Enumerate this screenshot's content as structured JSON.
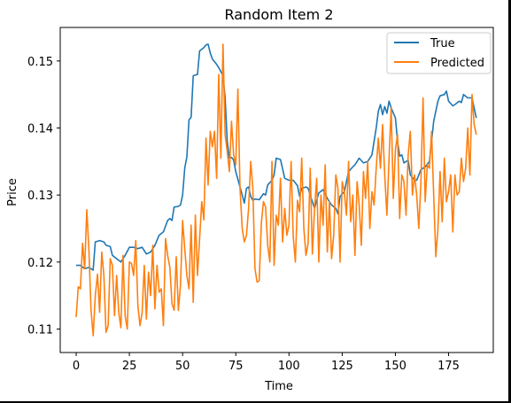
{
  "chart_data": {
    "type": "line",
    "title": "Random Item 2",
    "xlabel": "Time",
    "ylabel": "Price",
    "xlim": [
      -7.5,
      196
    ],
    "ylim": [
      0.1065,
      0.155
    ],
    "xticks": [
      0,
      25,
      50,
      75,
      100,
      125,
      150,
      175
    ],
    "yticks": [
      0.11,
      0.12,
      0.13,
      0.14,
      0.15
    ],
    "ytick_labels": [
      "0.11",
      "0.12",
      "0.13",
      "0.14",
      "0.15"
    ],
    "grid": false,
    "legend_position": "top-right",
    "series": [
      {
        "name": "True",
        "color": "#1f77b4",
        "points": [
          [
            0,
            0.1195
          ],
          [
            2,
            0.1195
          ],
          [
            4,
            0.119
          ],
          [
            6,
            0.1192
          ],
          [
            8,
            0.1188
          ],
          [
            9,
            0.123
          ],
          [
            11,
            0.1232
          ],
          [
            13,
            0.123
          ],
          [
            14,
            0.1225
          ],
          [
            16,
            0.1223
          ],
          [
            17,
            0.121
          ],
          [
            19,
            0.1205
          ],
          [
            21,
            0.12
          ],
          [
            23,
            0.121
          ],
          [
            25,
            0.1222
          ],
          [
            27,
            0.1222
          ],
          [
            29,
            0.122
          ],
          [
            31,
            0.1222
          ],
          [
            33,
            0.1212
          ],
          [
            35,
            0.1215
          ],
          [
            37,
            0.1225
          ],
          [
            39,
            0.124
          ],
          [
            41,
            0.1245
          ],
          [
            43,
            0.1262
          ],
          [
            44,
            0.1265
          ],
          [
            45,
            0.1262
          ],
          [
            46,
            0.1282
          ],
          [
            48,
            0.1283
          ],
          [
            49,
            0.1285
          ],
          [
            50,
            0.13
          ],
          [
            51,
            0.134
          ],
          [
            52,
            0.1357
          ],
          [
            53,
            0.1412
          ],
          [
            54,
            0.1416
          ],
          [
            55,
            0.1478
          ],
          [
            57,
            0.148
          ],
          [
            58,
            0.1515
          ],
          [
            60,
            0.152
          ],
          [
            61,
            0.1524
          ],
          [
            62,
            0.1525
          ],
          [
            63,
            0.1512
          ],
          [
            64,
            0.1503
          ],
          [
            66,
            0.1495
          ],
          [
            67,
            0.149
          ],
          [
            69,
            0.1478
          ],
          [
            70,
            0.1445
          ],
          [
            71,
            0.138
          ],
          [
            72,
            0.1355
          ],
          [
            73,
            0.1356
          ],
          [
            74,
            0.1352
          ],
          [
            75,
            0.1335
          ],
          [
            77,
            0.1312
          ],
          [
            78,
            0.13
          ],
          [
            79,
            0.1288
          ],
          [
            80,
            0.131
          ],
          [
            81,
            0.1312
          ],
          [
            82,
            0.1298
          ],
          [
            83,
            0.1292
          ],
          [
            84,
            0.1294
          ],
          [
            86,
            0.1293
          ],
          [
            88,
            0.1302
          ],
          [
            89,
            0.13
          ],
          [
            90,
            0.1315
          ],
          [
            92,
            0.1322
          ],
          [
            93,
            0.133
          ],
          [
            94,
            0.1355
          ],
          [
            96,
            0.1353
          ],
          [
            98,
            0.1325
          ],
          [
            100,
            0.1322
          ],
          [
            102,
            0.1322
          ],
          [
            104,
            0.1314
          ],
          [
            105,
            0.1298
          ],
          [
            106,
            0.131
          ],
          [
            108,
            0.1312
          ],
          [
            109,
            0.131
          ],
          [
            111,
            0.129
          ],
          [
            112,
            0.128
          ],
          [
            113,
            0.1292
          ],
          [
            114,
            0.1303
          ],
          [
            116,
            0.1308
          ],
          [
            118,
            0.1295
          ],
          [
            120,
            0.1285
          ],
          [
            122,
            0.128
          ],
          [
            123,
            0.1272
          ],
          [
            124,
            0.1298
          ],
          [
            126,
            0.1305
          ],
          [
            127,
            0.132
          ],
          [
            128,
            0.1335
          ],
          [
            130,
            0.1342
          ],
          [
            131,
            0.1345
          ],
          [
            133,
            0.1355
          ],
          [
            135,
            0.1348
          ],
          [
            137,
            0.135
          ],
          [
            139,
            0.136
          ],
          [
            141,
            0.14
          ],
          [
            142,
            0.1425
          ],
          [
            143,
            0.1435
          ],
          [
            144,
            0.142
          ],
          [
            145,
            0.1432
          ],
          [
            146,
            0.1422
          ],
          [
            147,
            0.144
          ],
          [
            148,
            0.143
          ],
          [
            150,
            0.1415
          ],
          [
            151,
            0.138
          ],
          [
            152,
            0.1358
          ],
          [
            153,
            0.136
          ],
          [
            154,
            0.1348
          ],
          [
            156,
            0.1352
          ],
          [
            157,
            0.133
          ],
          [
            159,
            0.1322
          ],
          [
            160,
            0.1322
          ],
          [
            162,
            0.1338
          ],
          [
            164,
            0.1342
          ],
          [
            166,
            0.135
          ],
          [
            168,
            0.141
          ],
          [
            170,
            0.144
          ],
          [
            171,
            0.1448
          ],
          [
            173,
            0.145
          ],
          [
            174,
            0.1455
          ],
          [
            175,
            0.144
          ],
          [
            177,
            0.1433
          ],
          [
            178,
            0.1435
          ],
          [
            180,
            0.144
          ],
          [
            181,
            0.1438
          ],
          [
            182,
            0.145
          ],
          [
            184,
            0.1445
          ],
          [
            186,
            0.1445
          ],
          [
            188,
            0.1415
          ]
        ]
      },
      {
        "name": "Predicted",
        "color": "#ff7f0e",
        "points": [
          [
            0,
            0.1118
          ],
          [
            1,
            0.1163
          ],
          [
            2,
            0.116
          ],
          [
            3,
            0.1228
          ],
          [
            4,
            0.119
          ],
          [
            5,
            0.1278
          ],
          [
            6,
            0.1218
          ],
          [
            7,
            0.1128
          ],
          [
            8,
            0.109
          ],
          [
            9,
            0.115
          ],
          [
            10,
            0.1182
          ],
          [
            11,
            0.1125
          ],
          [
            12,
            0.1215
          ],
          [
            13,
            0.118
          ],
          [
            14,
            0.1095
          ],
          [
            15,
            0.1105
          ],
          [
            16,
            0.1205
          ],
          [
            17,
            0.1195
          ],
          [
            18,
            0.112
          ],
          [
            19,
            0.118
          ],
          [
            20,
            0.1125
          ],
          [
            21,
            0.1102
          ],
          [
            22,
            0.121
          ],
          [
            23,
            0.112
          ],
          [
            24,
            0.11
          ],
          [
            25,
            0.12
          ],
          [
            26,
            0.1198
          ],
          [
            27,
            0.118
          ],
          [
            28,
            0.1232
          ],
          [
            29,
            0.1135
          ],
          [
            30,
            0.1105
          ],
          [
            31,
            0.1125
          ],
          [
            32,
            0.1195
          ],
          [
            33,
            0.1115
          ],
          [
            34,
            0.1185
          ],
          [
            35,
            0.115
          ],
          [
            36,
            0.1225
          ],
          [
            37,
            0.113
          ],
          [
            38,
            0.1195
          ],
          [
            39,
            0.1155
          ],
          [
            40,
            0.116
          ],
          [
            41,
            0.1105
          ],
          [
            42,
            0.1235
          ],
          [
            43,
            0.121
          ],
          [
            44,
            0.1192
          ],
          [
            45,
            0.1138
          ],
          [
            46,
            0.1128
          ],
          [
            47,
            0.1208
          ],
          [
            48,
            0.1128
          ],
          [
            49,
            0.1165
          ],
          [
            50,
            0.1262
          ],
          [
            51,
            0.122
          ],
          [
            52,
            0.118
          ],
          [
            53,
            0.116
          ],
          [
            54,
            0.1255
          ],
          [
            55,
            0.114
          ],
          [
            56,
            0.127
          ],
          [
            57,
            0.118
          ],
          [
            58,
            0.1235
          ],
          [
            59,
            0.129
          ],
          [
            60,
            0.1263
          ],
          [
            61,
            0.1385
          ],
          [
            62,
            0.1315
          ],
          [
            63,
            0.1395
          ],
          [
            64,
            0.1372
          ],
          [
            65,
            0.1395
          ],
          [
            66,
            0.1325
          ],
          [
            67,
            0.148
          ],
          [
            68,
            0.1355
          ],
          [
            69,
            0.1525
          ],
          [
            70,
            0.139
          ],
          [
            71,
            0.1365
          ],
          [
            72,
            0.1335
          ],
          [
            73,
            0.141
          ],
          [
            74,
            0.136
          ],
          [
            75,
            0.1345
          ],
          [
            76,
            0.1458
          ],
          [
            77,
            0.131
          ],
          [
            78,
            0.125
          ],
          [
            79,
            0.123
          ],
          [
            80,
            0.124
          ],
          [
            81,
            0.128
          ],
          [
            82,
            0.135
          ],
          [
            83,
            0.131
          ],
          [
            84,
            0.119
          ],
          [
            85,
            0.117
          ],
          [
            86,
            0.1172
          ],
          [
            87,
            0.1258
          ],
          [
            88,
            0.129
          ],
          [
            89,
            0.1282
          ],
          [
            90,
            0.1225
          ],
          [
            91,
            0.12
          ],
          [
            92,
            0.135
          ],
          [
            93,
            0.1195
          ],
          [
            94,
            0.127
          ],
          [
            95,
            0.1255
          ],
          [
            96,
            0.1325
          ],
          [
            97,
            0.123
          ],
          [
            98,
            0.128
          ],
          [
            99,
            0.124
          ],
          [
            100,
            0.1255
          ],
          [
            101,
            0.135
          ],
          [
            102,
            0.1238
          ],
          [
            103,
            0.12
          ],
          [
            104,
            0.1292
          ],
          [
            105,
            0.1275
          ],
          [
            106,
            0.1355
          ],
          [
            107,
            0.125
          ],
          [
            108,
            0.121
          ],
          [
            109,
            0.1228
          ],
          [
            110,
            0.134
          ],
          [
            111,
            0.1212
          ],
          [
            112,
            0.128
          ],
          [
            113,
            0.1325
          ],
          [
            114,
            0.12
          ],
          [
            115,
            0.13
          ],
          [
            116,
            0.1255
          ],
          [
            117,
            0.1345
          ],
          [
            118,
            0.1215
          ],
          [
            119,
            0.129
          ],
          [
            120,
            0.1205
          ],
          [
            121,
            0.124
          ],
          [
            122,
            0.133
          ],
          [
            123,
            0.131
          ],
          [
            124,
            0.12
          ],
          [
            125,
            0.132
          ],
          [
            126,
            0.1305
          ],
          [
            127,
            0.127
          ],
          [
            128,
            0.135
          ],
          [
            129,
            0.126
          ],
          [
            130,
            0.13
          ],
          [
            131,
            0.121
          ],
          [
            132,
            0.132
          ],
          [
            133,
            0.1285
          ],
          [
            134,
            0.1225
          ],
          [
            135,
            0.1335
          ],
          [
            136,
            0.1295
          ],
          [
            137,
            0.135
          ],
          [
            138,
            0.125
          ],
          [
            139,
            0.1305
          ],
          [
            140,
            0.1285
          ],
          [
            141,
            0.134
          ],
          [
            142,
            0.1385
          ],
          [
            143,
            0.134
          ],
          [
            144,
            0.1405
          ],
          [
            145,
            0.133
          ],
          [
            146,
            0.127
          ],
          [
            147,
            0.1355
          ],
          [
            148,
            0.143
          ],
          [
            149,
            0.1295
          ],
          [
            150,
            0.1368
          ],
          [
            151,
            0.139
          ],
          [
            152,
            0.1265
          ],
          [
            153,
            0.133
          ],
          [
            154,
            0.132
          ],
          [
            155,
            0.127
          ],
          [
            156,
            0.136
          ],
          [
            157,
            0.1395
          ],
          [
            158,
            0.13
          ],
          [
            159,
            0.133
          ],
          [
            160,
            0.13
          ],
          [
            161,
            0.125
          ],
          [
            162,
            0.132
          ],
          [
            163,
            0.1445
          ],
          [
            164,
            0.129
          ],
          [
            165,
            0.1345
          ],
          [
            166,
            0.134
          ],
          [
            167,
            0.1395
          ],
          [
            168,
            0.13
          ],
          [
            169,
            0.1208
          ],
          [
            170,
            0.125
          ],
          [
            171,
            0.1335
          ],
          [
            172,
            0.126
          ],
          [
            173,
            0.1355
          ],
          [
            174,
            0.129
          ],
          [
            175,
            0.1305
          ],
          [
            176,
            0.133
          ],
          [
            177,
            0.1245
          ],
          [
            178,
            0.133
          ],
          [
            179,
            0.13
          ],
          [
            180,
            0.1305
          ],
          [
            181,
            0.1355
          ],
          [
            182,
            0.132
          ],
          [
            183,
            0.134
          ],
          [
            184,
            0.14
          ],
          [
            185,
            0.133
          ],
          [
            186,
            0.145
          ],
          [
            187,
            0.1405
          ],
          [
            188,
            0.139
          ]
        ]
      }
    ]
  }
}
